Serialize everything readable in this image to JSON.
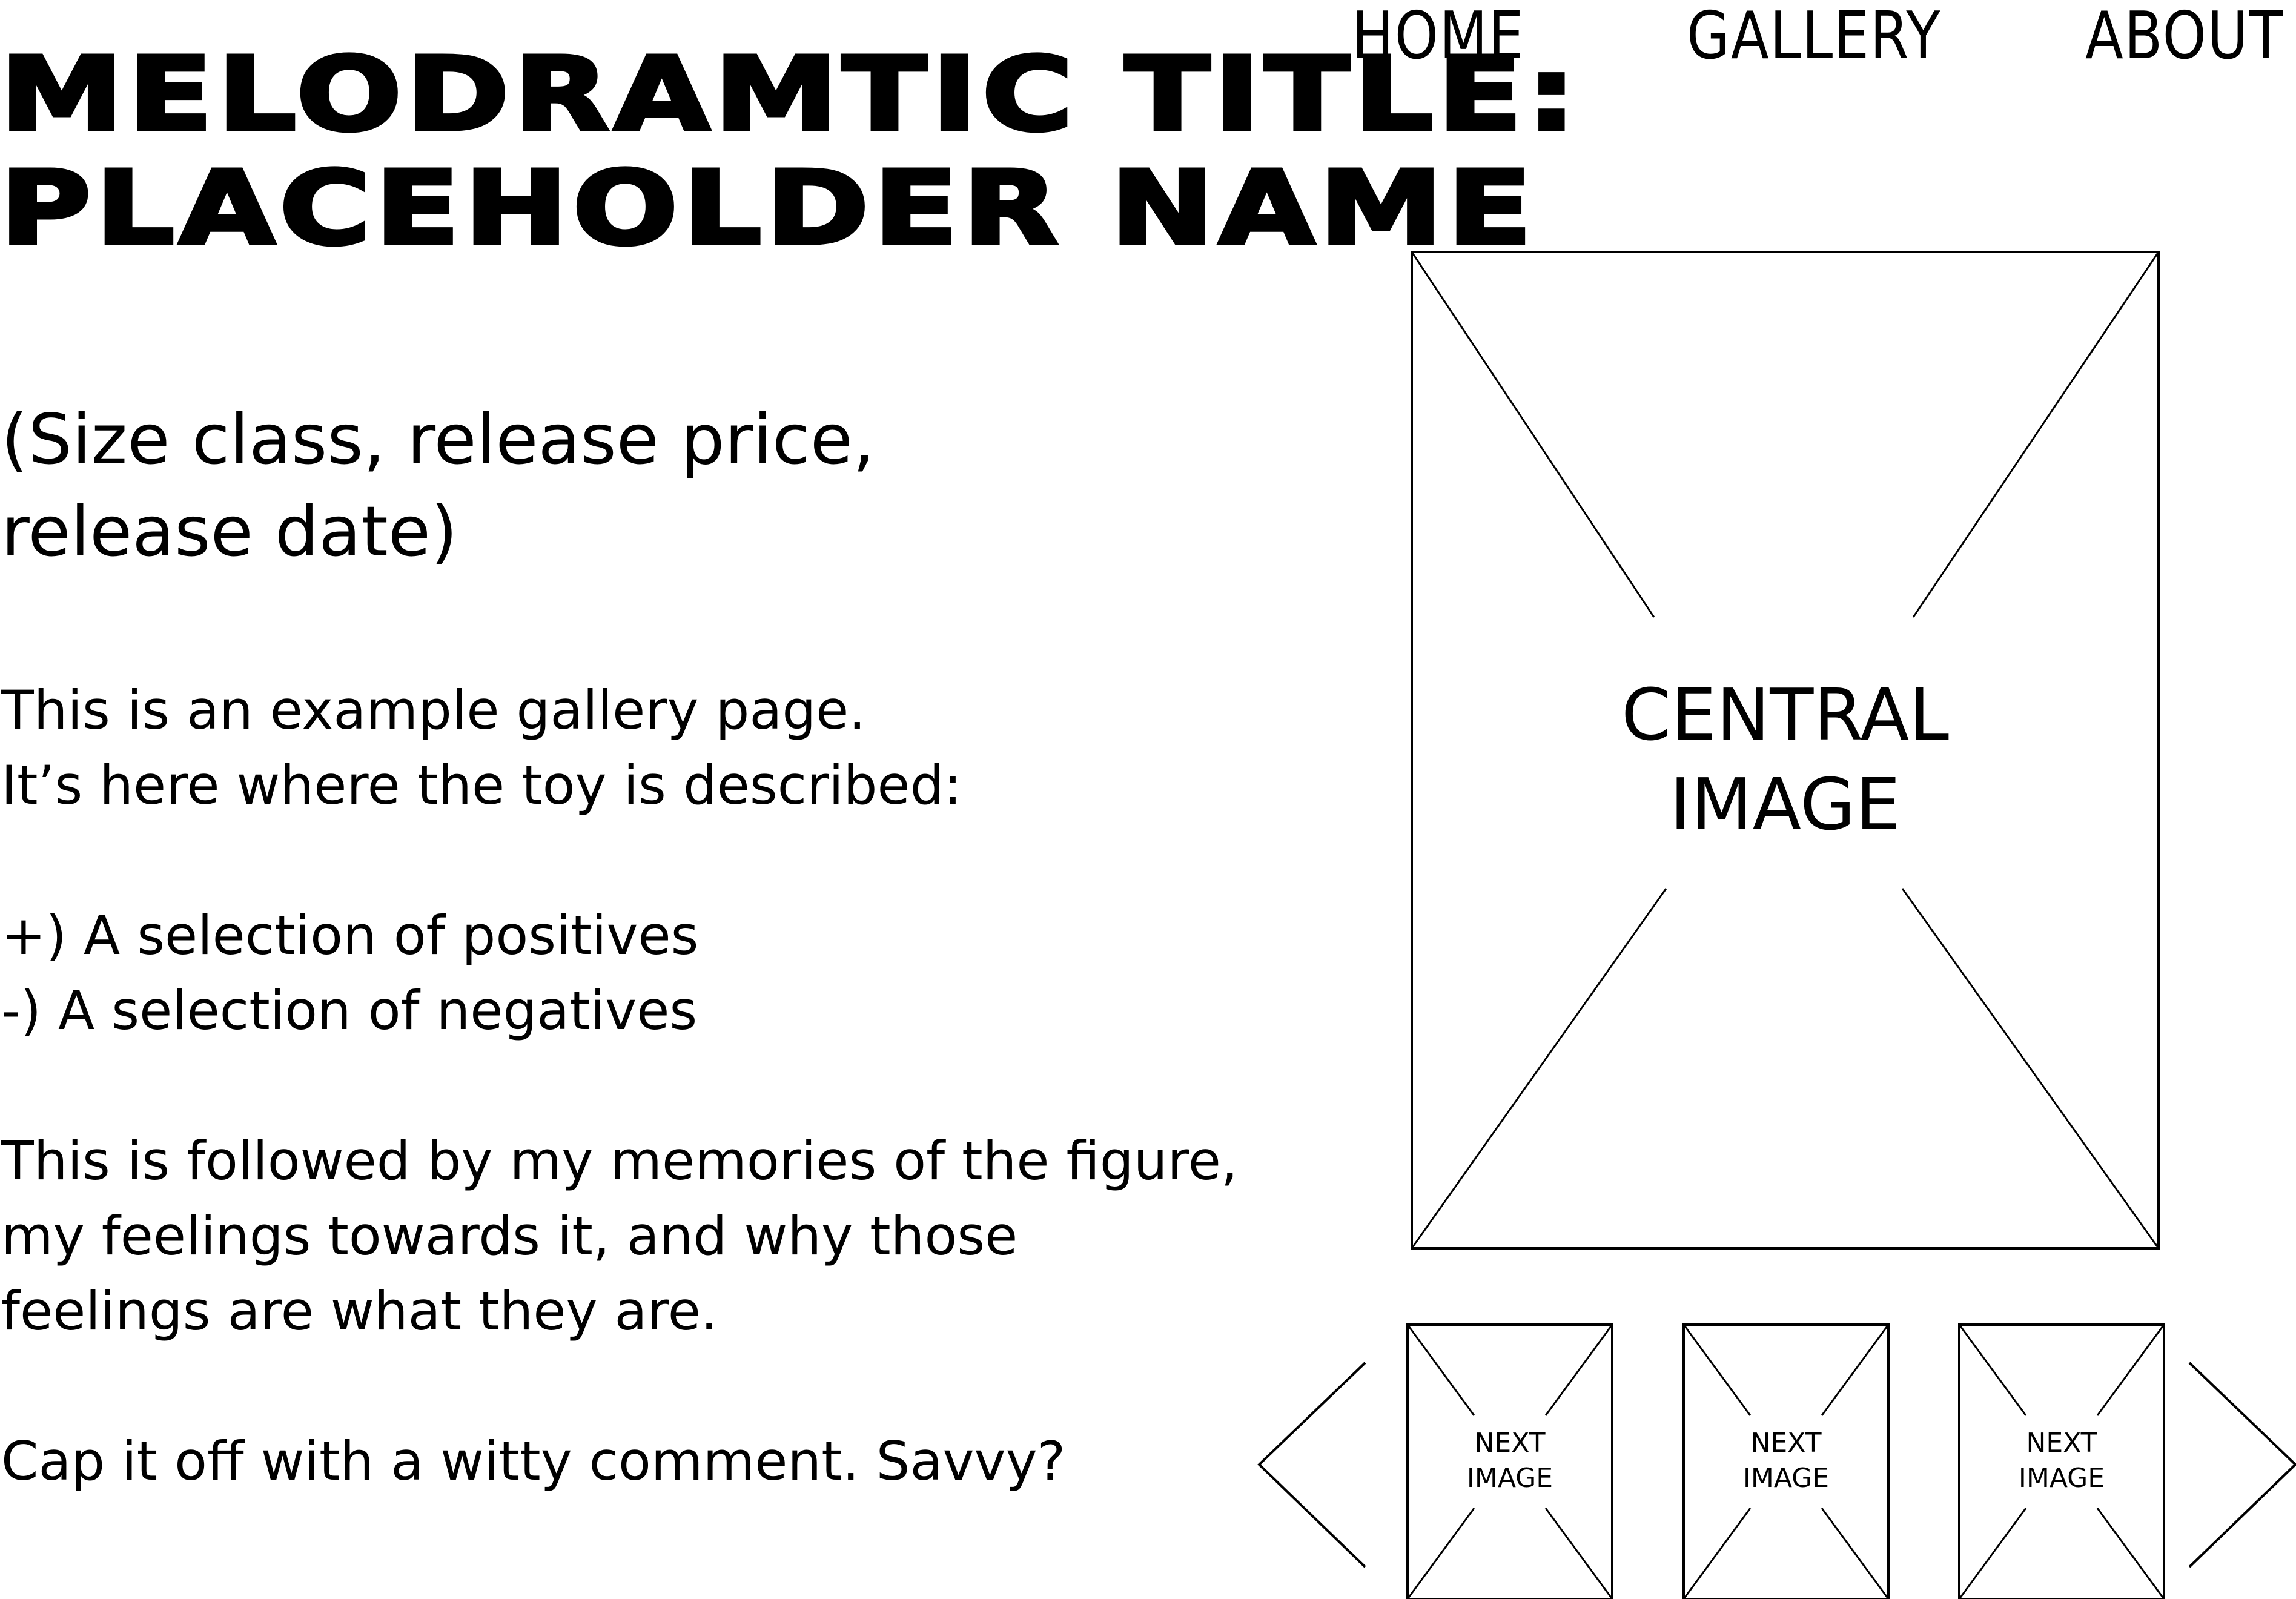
{
  "header": {
    "title_line1": "MELODRAMTIC TITLE:",
    "title_line2": "PLACEHOLDER NAME"
  },
  "nav": {
    "home": "HOME",
    "gallery": "GALLERY",
    "about": "ABOUT"
  },
  "specs": {
    "line1": "(Size class, release price,",
    "line2": "release date)"
  },
  "description": {
    "intro_line1": "This is an example gallery page.",
    "intro_line2": "It’s here where the toy is described:",
    "positives": "+) A selection of positives",
    "negatives": "-) A selection of negatives",
    "memories_line1": "This is followed by my memories of the figure,",
    "memories_line2": "my feelings towards it, and why those",
    "memories_line3": "feelings are what they are.",
    "closing": "Cap it off with a witty comment. Savvy?"
  },
  "gallery": {
    "central_label_line1": "CENTRAL",
    "central_label_line2": "IMAGE",
    "thumbnails": [
      {
        "line1": "NEXT",
        "line2": "IMAGE"
      },
      {
        "line1": "NEXT",
        "line2": "IMAGE"
      },
      {
        "line1": "NEXT",
        "line2": "IMAGE"
      }
    ],
    "prev_icon": "chevron-left-icon",
    "next_icon": "chevron-right-icon"
  }
}
